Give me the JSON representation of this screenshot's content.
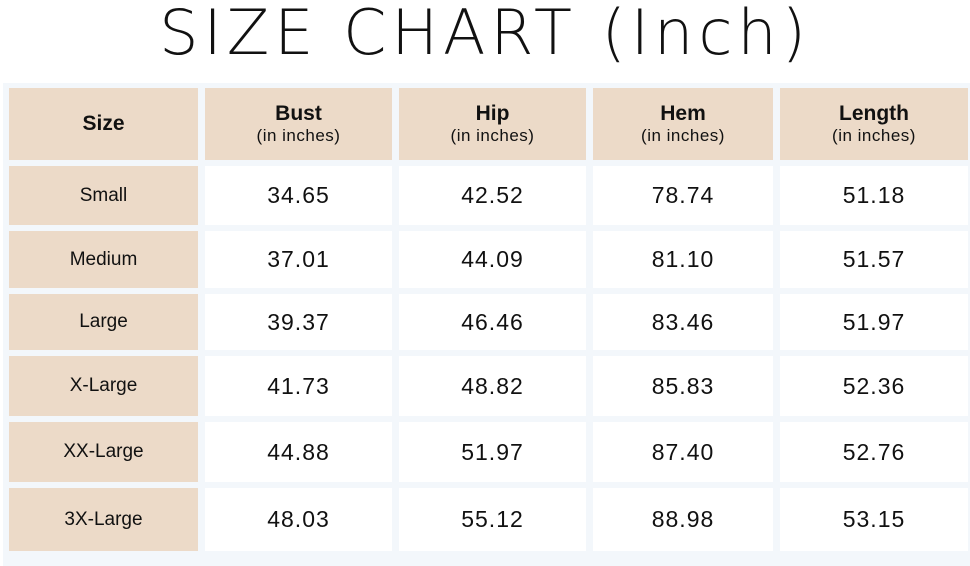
{
  "title": "SIZE CHART (Inch)",
  "table": {
    "size_header": "Size",
    "columns": [
      {
        "label": "Bust",
        "unit": "(in inches)"
      },
      {
        "label": "Hip",
        "unit": "(in inches)"
      },
      {
        "label": "Hem",
        "unit": "(in inches)"
      },
      {
        "label": "Length",
        "unit": "(in inches)"
      }
    ],
    "rows": [
      {
        "size": "Small",
        "values": [
          "34.65",
          "42.52",
          "78.74",
          "51.18"
        ]
      },
      {
        "size": "Medium",
        "values": [
          "37.01",
          "44.09",
          "81.10",
          "51.57"
        ]
      },
      {
        "size": "Large",
        "values": [
          "39.37",
          "46.46",
          "83.46",
          "51.97"
        ]
      },
      {
        "size": "X-Large",
        "values": [
          "41.73",
          "48.82",
          "85.83",
          "52.36"
        ]
      },
      {
        "size": "XX-Large",
        "values": [
          "44.88",
          "51.97",
          "87.40",
          "52.76"
        ]
      },
      {
        "size": "3X-Large",
        "values": [
          "48.03",
          "55.12",
          "88.98",
          "53.15"
        ]
      }
    ]
  },
  "colors": {
    "header_bg": "#ecdac8",
    "grid_bg": "#f3f7fb",
    "cell_bg": "#ffffff"
  }
}
